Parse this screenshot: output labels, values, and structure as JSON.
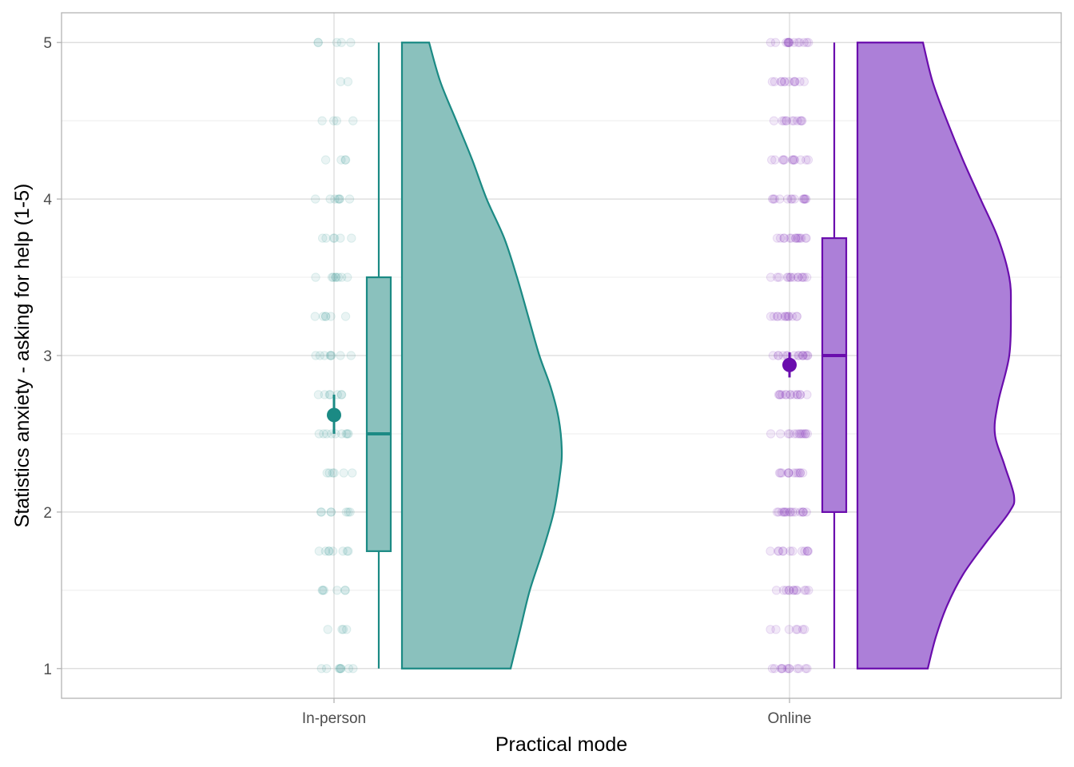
{
  "chart_data": {
    "type": "raincloud",
    "title": "",
    "xlabel": "Practical mode",
    "ylabel": "Statistics anxiety - asking for help (1-5)",
    "ylim": [
      0.81,
      5.19
    ],
    "yticks": [
      1,
      2,
      3,
      4,
      5
    ],
    "grid": true,
    "legend": "none",
    "categories": [
      "In-person",
      "Online"
    ],
    "series": [
      {
        "name": "In-person",
        "color": "#1b8a84",
        "fill": "#8ac1bd",
        "mean": 2.62,
        "mean_ci": [
          2.5,
          2.75
        ],
        "box": {
          "min": 1.0,
          "q1": 1.75,
          "median": 2.5,
          "q3": 3.5,
          "max": 5.0
        },
        "density": [
          [
            1.0,
            0.68
          ],
          [
            1.25,
            0.74
          ],
          [
            1.5,
            0.8
          ],
          [
            1.75,
            0.88
          ],
          [
            2.0,
            0.95
          ],
          [
            2.25,
            0.99
          ],
          [
            2.4,
            1.0
          ],
          [
            2.6,
            0.98
          ],
          [
            2.8,
            0.93
          ],
          [
            3.0,
            0.86
          ],
          [
            3.25,
            0.79
          ],
          [
            3.5,
            0.72
          ],
          [
            3.75,
            0.64
          ],
          [
            4.0,
            0.53
          ],
          [
            4.25,
            0.44
          ],
          [
            4.5,
            0.34
          ],
          [
            4.75,
            0.24
          ],
          [
            5.0,
            0.17
          ]
        ],
        "points": [
          {
            "y": 1.0,
            "n": 8
          },
          {
            "y": 1.25,
            "n": 4
          },
          {
            "y": 1.5,
            "n": 6
          },
          {
            "y": 1.75,
            "n": 8
          },
          {
            "y": 2.0,
            "n": 7
          },
          {
            "y": 2.25,
            "n": 6
          },
          {
            "y": 2.5,
            "n": 9
          },
          {
            "y": 2.75,
            "n": 7
          },
          {
            "y": 3.0,
            "n": 8
          },
          {
            "y": 3.25,
            "n": 6
          },
          {
            "y": 3.5,
            "n": 8
          },
          {
            "y": 3.75,
            "n": 6
          },
          {
            "y": 4.0,
            "n": 7
          },
          {
            "y": 4.25,
            "n": 4
          },
          {
            "y": 4.5,
            "n": 4
          },
          {
            "y": 4.75,
            "n": 2
          },
          {
            "y": 5.0,
            "n": 5
          }
        ]
      },
      {
        "name": "Online",
        "color": "#6a0dad",
        "fill": "#ac7fd8",
        "mean": 2.94,
        "mean_ci": [
          2.86,
          3.02
        ],
        "box": {
          "min": 1.0,
          "q1": 2.0,
          "median": 3.0,
          "q3": 3.75,
          "max": 5.0
        },
        "density": [
          [
            1.0,
            0.44
          ],
          [
            1.2,
            0.49
          ],
          [
            1.4,
            0.56
          ],
          [
            1.6,
            0.66
          ],
          [
            1.8,
            0.8
          ],
          [
            2.0,
            0.95
          ],
          [
            2.1,
            0.98
          ],
          [
            2.3,
            0.92
          ],
          [
            2.5,
            0.86
          ],
          [
            2.7,
            0.88
          ],
          [
            3.0,
            0.95
          ],
          [
            3.3,
            0.96
          ],
          [
            3.5,
            0.95
          ],
          [
            3.75,
            0.88
          ],
          [
            4.0,
            0.77
          ],
          [
            4.25,
            0.66
          ],
          [
            4.5,
            0.56
          ],
          [
            4.75,
            0.47
          ],
          [
            5.0,
            0.41
          ]
        ],
        "points": [
          {
            "y": 1.0,
            "n": 12
          },
          {
            "y": 1.25,
            "n": 7
          },
          {
            "y": 1.5,
            "n": 12
          },
          {
            "y": 1.75,
            "n": 12
          },
          {
            "y": 2.0,
            "n": 16
          },
          {
            "y": 2.25,
            "n": 12
          },
          {
            "y": 2.5,
            "n": 13
          },
          {
            "y": 2.75,
            "n": 14
          },
          {
            "y": 3.0,
            "n": 15
          },
          {
            "y": 3.25,
            "n": 13
          },
          {
            "y": 3.5,
            "n": 14
          },
          {
            "y": 3.75,
            "n": 14
          },
          {
            "y": 4.0,
            "n": 13
          },
          {
            "y": 4.25,
            "n": 12
          },
          {
            "y": 4.5,
            "n": 11
          },
          {
            "y": 4.75,
            "n": 12
          },
          {
            "y": 5.0,
            "n": 14
          }
        ]
      }
    ]
  }
}
